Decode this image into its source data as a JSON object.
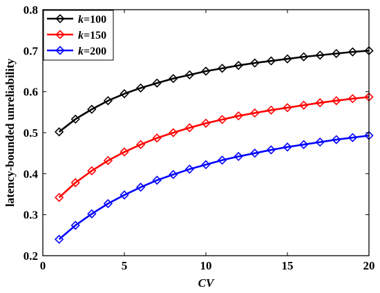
{
  "chart_data": {
    "type": "line",
    "title": "",
    "xlabel": "CV",
    "ylabel": "latency-bounded unreliability",
    "xlim": [
      0,
      20
    ],
    "ylim": [
      0.2,
      0.8
    ],
    "xticks": [
      "0",
      "5",
      "10",
      "15",
      "20"
    ],
    "yticks": [
      "0.2",
      "0.3",
      "0.4",
      "0.5",
      "0.6",
      "0.7",
      "0.8"
    ],
    "grid": false,
    "legend_position": "top-left",
    "x": [
      1,
      2,
      3,
      4,
      5,
      6,
      7,
      8,
      9,
      10,
      11,
      12,
      13,
      14,
      15,
      16,
      17,
      18,
      19,
      20
    ],
    "series": [
      {
        "name": "k=100",
        "name_var": "k",
        "name_rest": "=100",
        "color": "#000000",
        "marker": "diamond",
        "values": [
          0.502,
          0.533,
          0.557,
          0.578,
          0.595,
          0.609,
          0.621,
          0.632,
          0.641,
          0.65,
          0.657,
          0.664,
          0.67,
          0.675,
          0.68,
          0.685,
          0.689,
          0.693,
          0.697,
          0.7
        ]
      },
      {
        "name": "k=150",
        "name_var": "k",
        "name_rest": "=150",
        "color": "#ff0000",
        "marker": "diamond",
        "values": [
          0.342,
          0.378,
          0.407,
          0.432,
          0.453,
          0.471,
          0.487,
          0.5,
          0.512,
          0.523,
          0.532,
          0.541,
          0.548,
          0.555,
          0.561,
          0.567,
          0.573,
          0.578,
          0.583,
          0.587
        ]
      },
      {
        "name": "k=200",
        "name_var": "k",
        "name_rest": "=200",
        "color": "#0000ff",
        "marker": "diamond",
        "values": [
          0.24,
          0.274,
          0.302,
          0.327,
          0.348,
          0.367,
          0.384,
          0.398,
          0.411,
          0.422,
          0.433,
          0.442,
          0.45,
          0.458,
          0.465,
          0.471,
          0.477,
          0.483,
          0.488,
          0.493
        ]
      }
    ]
  }
}
